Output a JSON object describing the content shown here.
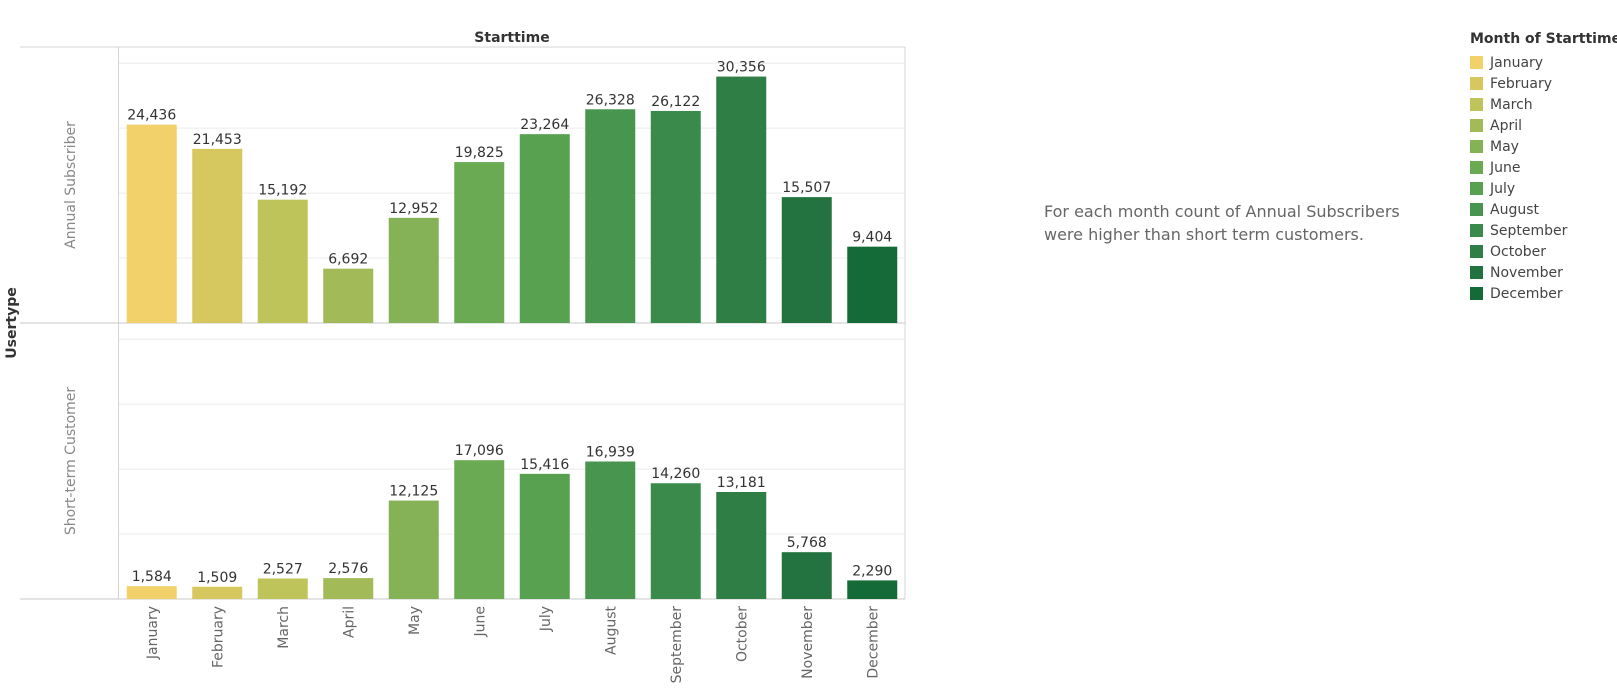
{
  "chart_data": {
    "type": "bar",
    "title": "",
    "column_header": "Starttime",
    "row_header": "Usertype",
    "categories": [
      "January",
      "February",
      "March",
      "April",
      "May",
      "June",
      "July",
      "August",
      "September",
      "October",
      "November",
      "December"
    ],
    "panels": [
      {
        "name": "Annual Subscriber",
        "values": [
          24436,
          21453,
          15192,
          6692,
          12952,
          19825,
          23264,
          26328,
          26122,
          30356,
          15507,
          9404
        ],
        "labels": [
          "24,436",
          "21,453",
          "15,192",
          "6,692",
          "12,952",
          "19,825",
          "23,264",
          "26,328",
          "26,122",
          "30,356",
          "15,507",
          "9,404"
        ]
      },
      {
        "name": "Short-term Customer",
        "values": [
          1584,
          1509,
          2527,
          2576,
          12125,
          17096,
          15416,
          16939,
          14260,
          13181,
          5768,
          2290
        ],
        "labels": [
          "1,584",
          "1,509",
          "2,527",
          "2,576",
          "12,125",
          "17,096",
          "15,416",
          "16,939",
          "14,260",
          "13,181",
          "5,768",
          "2,290"
        ]
      }
    ],
    "ylim": [
      0,
      34000
    ],
    "grid": true,
    "colors": [
      "#f2d16b",
      "#d6c85f",
      "#bec35a",
      "#a2ba58",
      "#86b257",
      "#6aaa52",
      "#57a151",
      "#47954f",
      "#3a8b4b",
      "#2f7e45",
      "#22733f",
      "#146b38"
    ],
    "legend": {
      "title": "Month of Starttime",
      "position": "top-right",
      "items": [
        "January",
        "February",
        "March",
        "April",
        "May",
        "June",
        "July",
        "August",
        "September",
        "October",
        "November",
        "December"
      ]
    }
  },
  "annotation": {
    "line1": "For each month count of Annual Subscribers",
    "line2": "were higher than short term customers."
  }
}
